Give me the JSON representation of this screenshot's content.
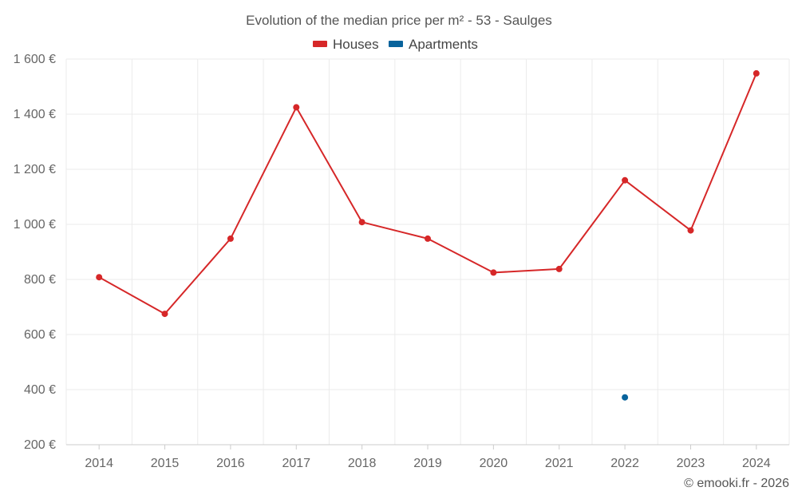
{
  "colors": {
    "houses": "#d62728",
    "apartments": "#08639c"
  },
  "chart_data": {
    "type": "line",
    "title": "Evolution of the median price per m² - 53 - Saulges",
    "xlabel": "",
    "ylabel": "",
    "categories": [
      "2014",
      "2015",
      "2016",
      "2017",
      "2018",
      "2019",
      "2020",
      "2021",
      "2022",
      "2023",
      "2024"
    ],
    "series": [
      {
        "name": "Houses",
        "values": [
          808,
          675,
          948,
          1425,
          1008,
          948,
          825,
          838,
          1160,
          978,
          1548
        ]
      },
      {
        "name": "Apartments",
        "values": [
          null,
          null,
          null,
          null,
          null,
          null,
          null,
          null,
          372,
          null,
          null
        ]
      }
    ],
    "ylim": [
      200,
      1600
    ],
    "yticks": [
      200,
      400,
      600,
      800,
      1000,
      1200,
      1400,
      1600
    ],
    "ytick_labels": [
      "200 €",
      "400 €",
      "600 €",
      "800 €",
      "1 000 €",
      "1 200 €",
      "1 400 €",
      "1 600 €"
    ],
    "grid": true,
    "legend_position": "top-center"
  },
  "credit": "© emooki.fr - 2026"
}
